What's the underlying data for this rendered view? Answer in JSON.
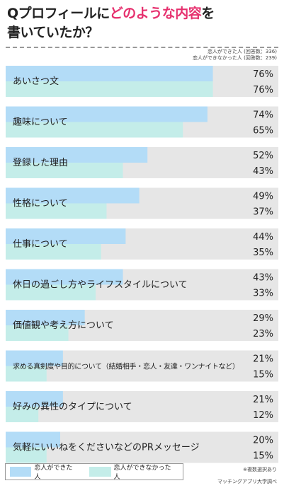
{
  "title": {
    "line1_pre": "Qプロフィールに",
    "line1_highlight": "どのような内容",
    "line1_post": "を",
    "line2": "書いていたか？"
  },
  "notes": {
    "n1": "恋人ができた人 (回答数：336)",
    "n2": "恋人ができなかった人 (回答数：239)"
  },
  "footnote": "※複数選択あり",
  "source": "マッチングアプリ大学調べ",
  "colors": {
    "series1": "#b3dcf7",
    "series2": "#c4ede9",
    "track": "#e6e6e6",
    "highlight": "#e6306e"
  },
  "chart_data": {
    "type": "bar",
    "orientation": "horizontal",
    "categories": [
      "あいさつ文",
      "趣味について",
      "登録した理由",
      "性格について",
      "仕事について",
      "休日の過ごし方やライフスタイルについて",
      "価値観や考え方について",
      "求める真剣度や目的について（結婚相手・恋人・友達・ワンナイトなど）",
      "好みの異性のタイプについて",
      "気軽にいいねをくださいなどのPRメッセージ"
    ],
    "series": [
      {
        "name": "恋人ができた人",
        "values": [
          76,
          74,
          52,
          49,
          44,
          43,
          29,
          21,
          21,
          20
        ]
      },
      {
        "name": "恋人ができなかった人",
        "values": [
          76,
          65,
          43,
          37,
          35,
          33,
          23,
          15,
          12,
          15
        ]
      }
    ],
    "unit": "%",
    "xlim": [
      0,
      100
    ]
  }
}
